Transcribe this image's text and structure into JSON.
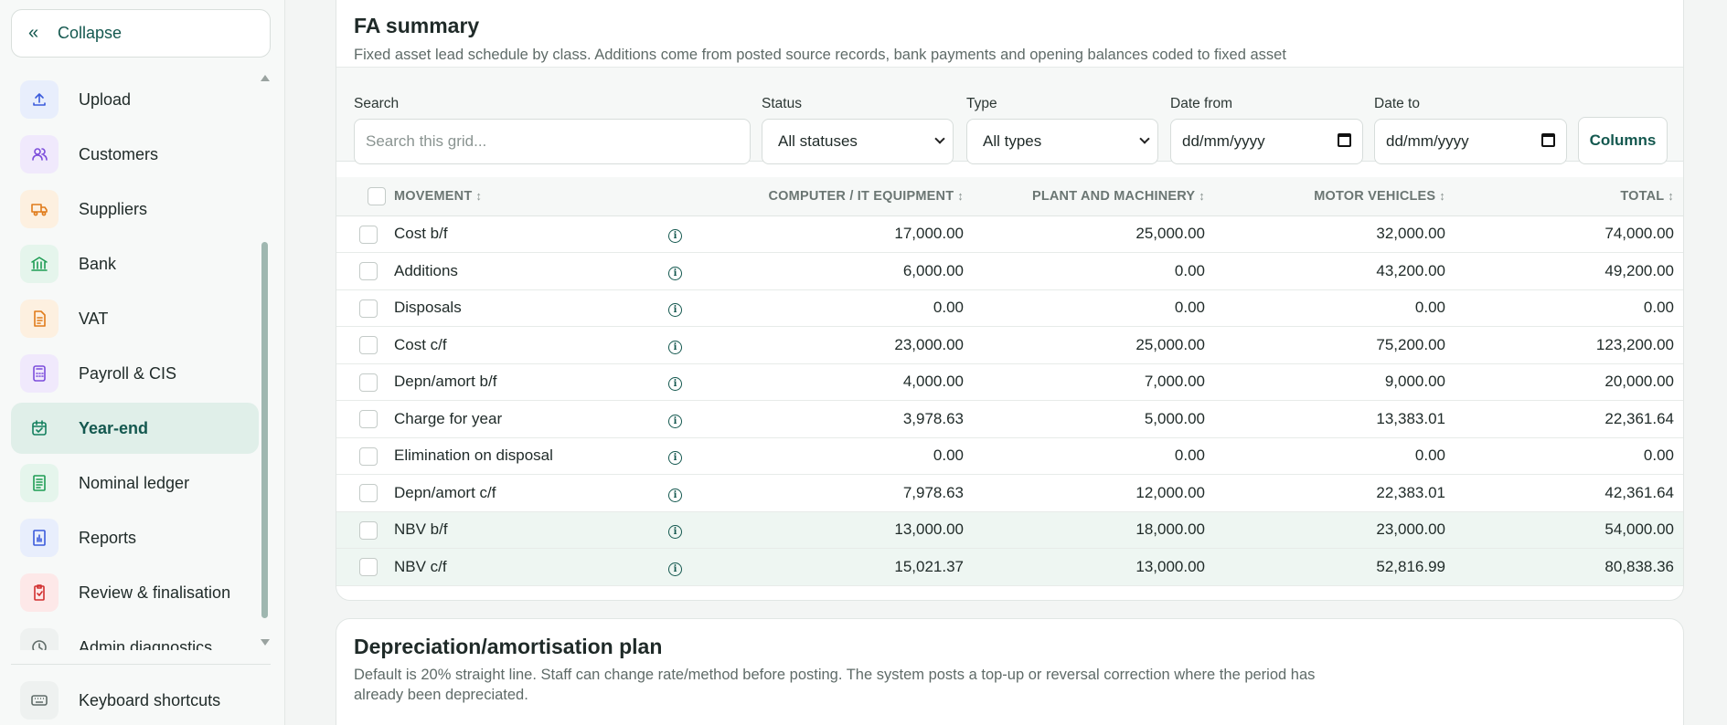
{
  "sidebar": {
    "collapse_label": "Collapse",
    "items": [
      {
        "label": "Upload",
        "icon": "upload-icon",
        "color": "#e8eefc",
        "fg": "#3b5bdb"
      },
      {
        "label": "Customers",
        "icon": "users-icon",
        "color": "#f0e9fc",
        "fg": "#7c4ddb"
      },
      {
        "label": "Suppliers",
        "icon": "truck-icon",
        "color": "#fdf0e0",
        "fg": "#e07b1a"
      },
      {
        "label": "Bank",
        "icon": "bank-icon",
        "color": "#e5f5ec",
        "fg": "#1f9d55"
      },
      {
        "label": "VAT",
        "icon": "document-icon",
        "color": "#fdf0e0",
        "fg": "#e07b1a"
      },
      {
        "label": "Payroll & CIS",
        "icon": "calculator-icon",
        "color": "#f0e9fc",
        "fg": "#7c4ddb"
      },
      {
        "label": "Year-end",
        "icon": "calendar-check-icon",
        "color": "#e0efe9",
        "fg": "#14805f",
        "active": true
      },
      {
        "label": "Nominal ledger",
        "icon": "ledger-icon",
        "color": "#e5f5ec",
        "fg": "#1f9d55"
      },
      {
        "label": "Reports",
        "icon": "bar-chart-icon",
        "color": "#e8eefc",
        "fg": "#3b5bdb"
      },
      {
        "label": "Review & finalisation",
        "icon": "clipboard-check-icon",
        "color": "#fde8e8",
        "fg": "#d12f2f"
      },
      {
        "label": "Admin diagnostics",
        "icon": "history-icon",
        "color": "#eef1f0",
        "fg": "#5f6b68"
      }
    ],
    "keyboard_label": "Keyboard shortcuts"
  },
  "fa_summary": {
    "title": "FA summary",
    "description": "Fixed asset lead schedule by class. Additions come from posted source records, bank payments and opening balances coded to fixed asset nominal accounts.",
    "filters": {
      "search_label": "Search",
      "search_placeholder": "Search this grid...",
      "status_label": "Status",
      "status_value": "All statuses",
      "type_label": "Type",
      "type_value": "All types",
      "date_from_label": "Date from",
      "date_from_value": "dd/mm/yyyy",
      "date_to_label": "Date to",
      "date_to_value": "dd/mm/yyyy",
      "columns_label": "Columns"
    },
    "columns": [
      "MOVEMENT",
      "COMPUTER / IT EQUIPMENT",
      "PLANT AND MACHINERY",
      "MOTOR VEHICLES",
      "TOTAL"
    ],
    "rows": [
      {
        "movement": "Cost b/f",
        "computer": "17,000.00",
        "plant": "25,000.00",
        "motor": "32,000.00",
        "total": "74,000.00"
      },
      {
        "movement": "Additions",
        "computer": "6,000.00",
        "plant": "0.00",
        "motor": "43,200.00",
        "total": "49,200.00"
      },
      {
        "movement": "Disposals",
        "computer": "0.00",
        "plant": "0.00",
        "motor": "0.00",
        "total": "0.00"
      },
      {
        "movement": "Cost c/f",
        "computer": "23,000.00",
        "plant": "25,000.00",
        "motor": "75,200.00",
        "total": "123,200.00"
      },
      {
        "movement": "Depn/amort b/f",
        "computer": "4,000.00",
        "plant": "7,000.00",
        "motor": "9,000.00",
        "total": "20,000.00"
      },
      {
        "movement": "Charge for year",
        "computer": "3,978.63",
        "plant": "5,000.00",
        "motor": "13,383.01",
        "total": "22,361.64"
      },
      {
        "movement": "Elimination on disposal",
        "computer": "0.00",
        "plant": "0.00",
        "motor": "0.00",
        "total": "0.00"
      },
      {
        "movement": "Depn/amort c/f",
        "computer": "7,978.63",
        "plant": "12,000.00",
        "motor": "22,383.01",
        "total": "42,361.64"
      },
      {
        "movement": "NBV b/f",
        "computer": "13,000.00",
        "plant": "18,000.00",
        "motor": "23,000.00",
        "total": "54,000.00",
        "highlight": true
      },
      {
        "movement": "NBV c/f",
        "computer": "15,021.37",
        "plant": "13,000.00",
        "motor": "52,816.99",
        "total": "80,838.36",
        "highlight": true
      }
    ]
  },
  "depreciation_plan": {
    "title": "Depreciation/amortisation plan",
    "description": "Default is 20% straight line. Staff can change rate/method before posting. The system posts a top-up or reversal correction where the period has already been depreciated."
  },
  "colors": {
    "accent": "#14584f",
    "active_bg": "#e0efe9",
    "highlight_row": "#eef6f2"
  }
}
